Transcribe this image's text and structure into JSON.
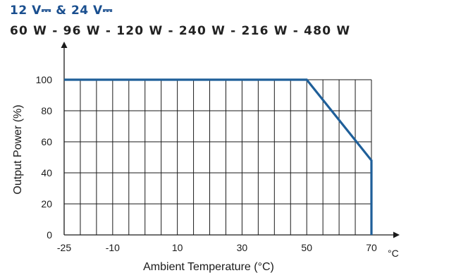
{
  "header": {
    "voltage": "12 V⎓ & 24 V⎓",
    "power": "60 W - 96 W - 120 W - 240 W - 216 W - 480 W"
  },
  "colors": {
    "curve": "#1f5f99",
    "grid": "#1a1a1a",
    "voltage_text": "#1a4f8f"
  },
  "chart_data": {
    "type": "line",
    "title": "",
    "xlabel": "Ambient Temperature (°C)",
    "ylabel": "Output Power (%)",
    "x_unit": "°C",
    "xlim": [
      -25,
      70
    ],
    "ylim": [
      0,
      100
    ],
    "x_ticks": [
      -25,
      -10,
      10,
      30,
      50,
      70
    ],
    "y_ticks": [
      0,
      20,
      40,
      60,
      80,
      100
    ],
    "grid": true,
    "series": [
      {
        "x": [
          -25,
          50,
          70,
          70
        ],
        "y": [
          100,
          100,
          48,
          0
        ]
      }
    ]
  }
}
